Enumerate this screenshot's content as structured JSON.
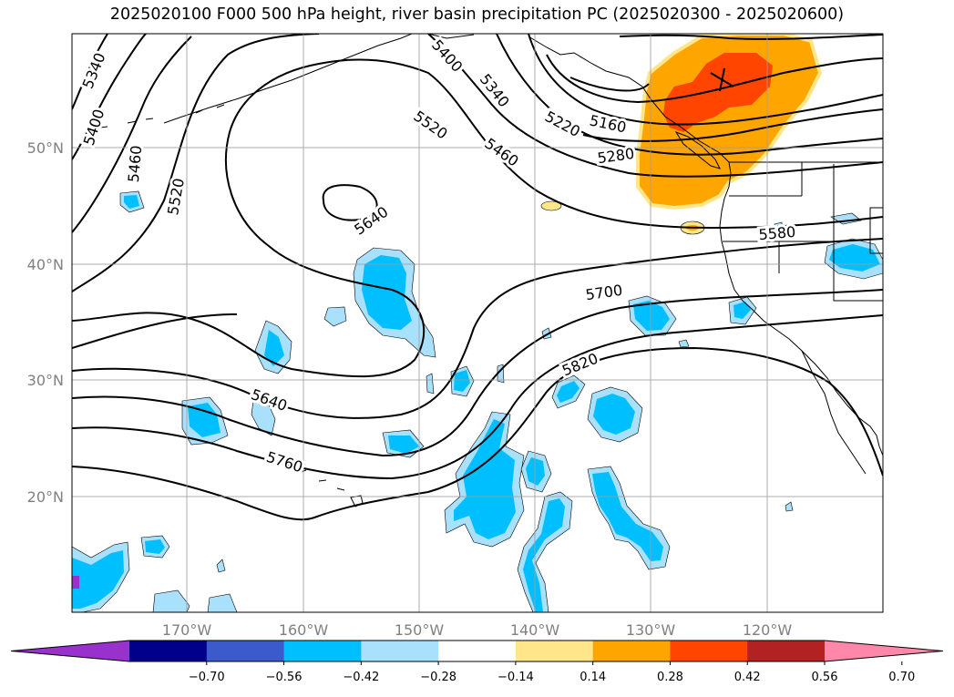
{
  "title": "2025020100 F000 500 hPa height, river basin precipitation PC (2025020300 - 2025020600)",
  "map": {
    "lat_labels": [
      "50°N",
      "40°N",
      "30°N",
      "20°N"
    ],
    "lon_labels": [
      "170°W",
      "160°W",
      "150°W",
      "140°W",
      "130°W",
      "120°W"
    ],
    "gridline_color": "#9e9e9e",
    "land_outline_color": "#000000"
  },
  "contours": {
    "field": "500 hPa height",
    "labels": [
      "5340",
      "5400",
      "5460",
      "5520",
      "5640",
      "5400",
      "5340",
      "5520",
      "5460",
      "5220",
      "5160",
      "5280",
      "5580",
      "5700",
      "5820",
      "5640",
      "5760"
    ]
  },
  "colorbar": {
    "ticks": [
      "−0.70",
      "−0.56",
      "−0.42",
      "−0.28",
      "−0.14",
      "0.14",
      "0.28",
      "0.42",
      "0.56",
      "0.70"
    ],
    "colors": [
      "#9932cc",
      "#00008b",
      "#3b5bcc",
      "#00bfff",
      "#a9e0fb",
      "#ffffff",
      "#ffe68a",
      "#ffa500",
      "#ff4500",
      "#b22222",
      "#ff88aa"
    ],
    "extend": "both"
  }
}
